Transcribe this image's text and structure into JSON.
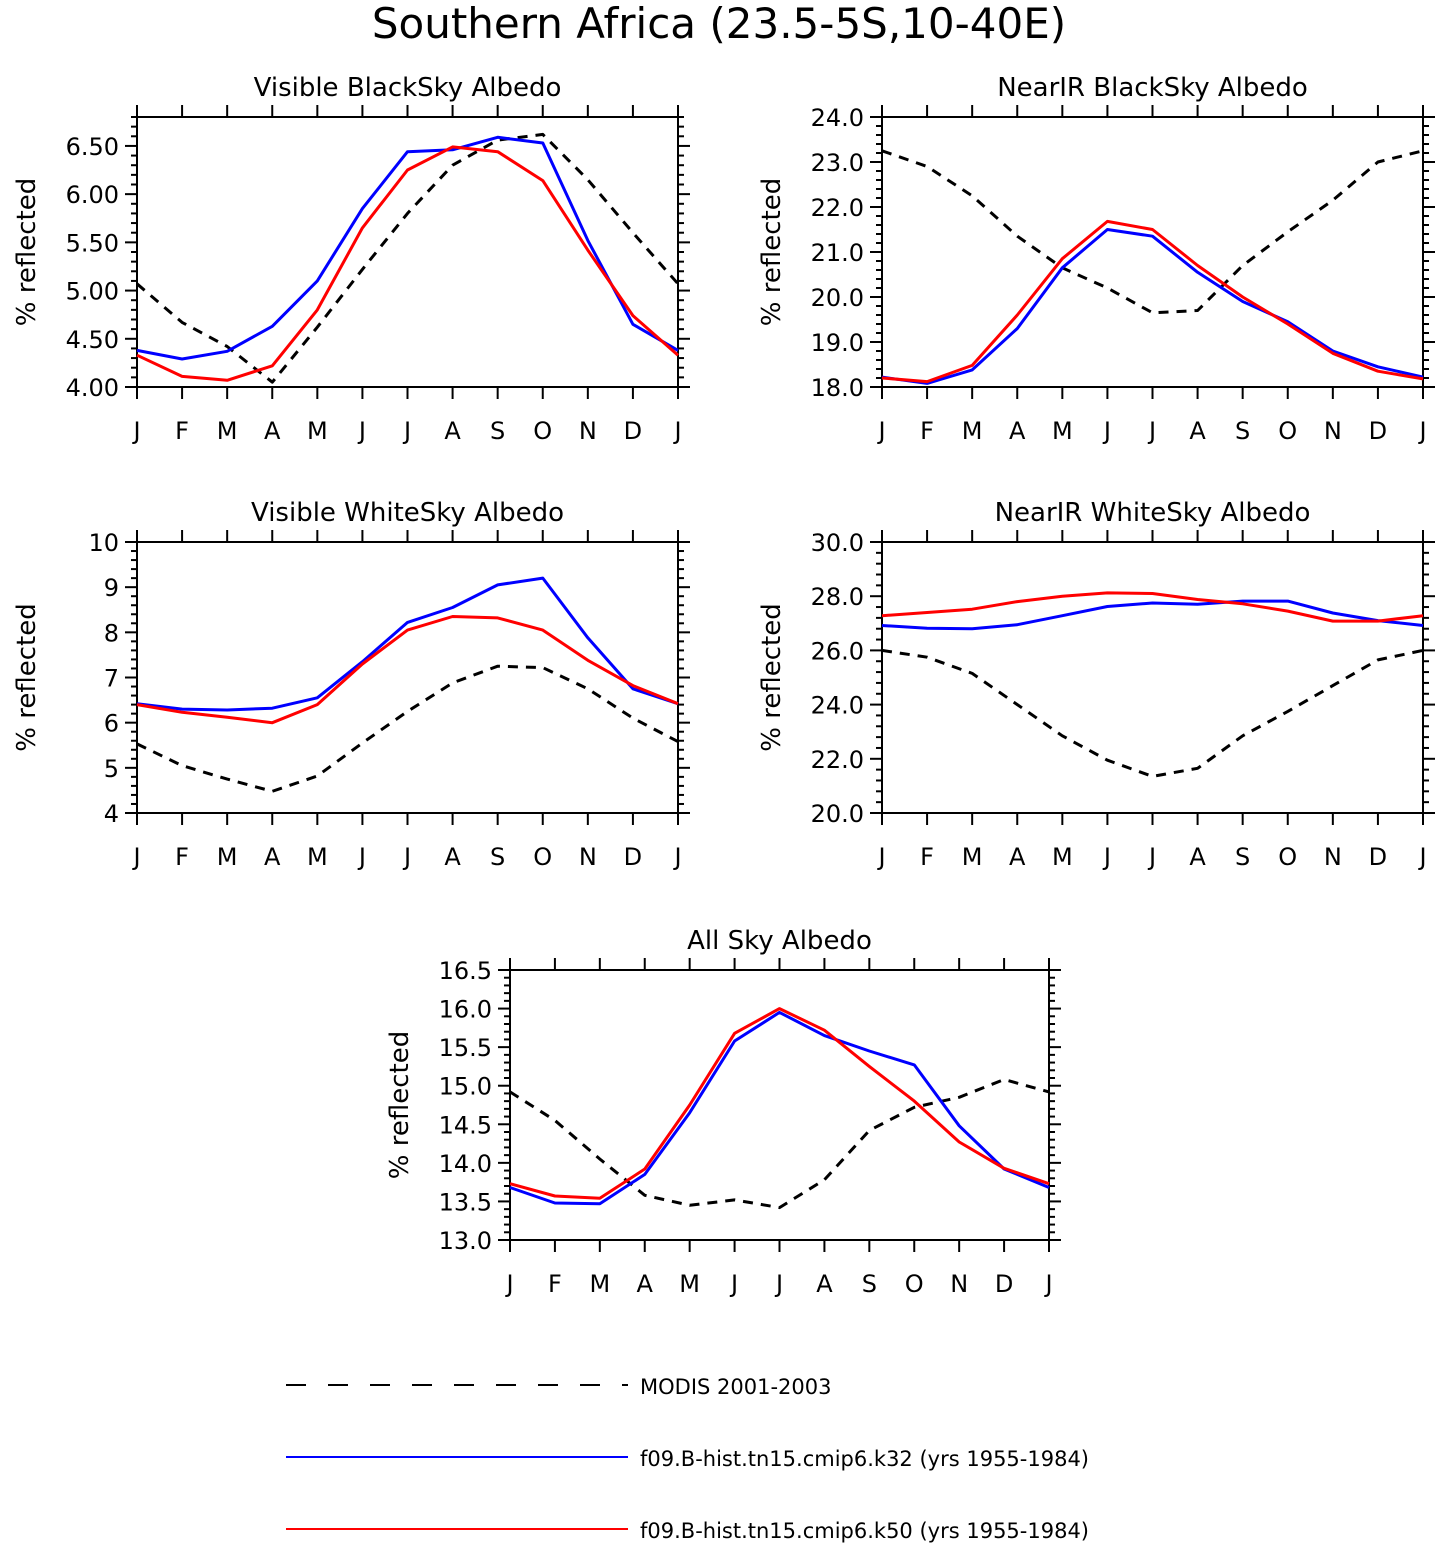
{
  "figure": {
    "title": "Southern Africa (23.5-5S,10-40E)"
  },
  "chart_data": [
    {
      "type": "line",
      "title": "Visible BlackSky Albedo",
      "ylabel": "% reflected",
      "ylim": [
        4.0,
        6.8
      ],
      "yticks": [
        4.0,
        4.5,
        5.0,
        5.5,
        6.0,
        6.5
      ],
      "ytick_labels": [
        "4.00",
        "4.50",
        "5.00",
        "5.50",
        "6.00",
        "6.50"
      ],
      "categories": [
        "J",
        "F",
        "M",
        "A",
        "M",
        "J",
        "J",
        "A",
        "S",
        "O",
        "N",
        "D",
        "J"
      ],
      "series": [
        {
          "name": "MODIS 2001-2003",
          "values": [
            5.07,
            4.67,
            4.42,
            4.05,
            4.62,
            5.22,
            5.8,
            6.3,
            6.56,
            6.62,
            6.15,
            5.6,
            5.07
          ]
        },
        {
          "name": "f09.B-hist.tn15.cmip6.k32 (yrs 1955-1984)",
          "values": [
            4.38,
            4.29,
            4.37,
            4.63,
            5.1,
            5.85,
            6.44,
            6.46,
            6.59,
            6.53,
            5.52,
            4.65,
            4.38
          ]
        },
        {
          "name": "f09.B-hist.tn15.cmip6.k50 (yrs 1955-1984)",
          "values": [
            4.33,
            4.11,
            4.07,
            4.22,
            4.8,
            5.65,
            6.25,
            6.49,
            6.44,
            6.14,
            5.42,
            4.74,
            4.33
          ]
        }
      ]
    },
    {
      "type": "line",
      "title": "NearIR BlackSky Albedo",
      "ylabel": "% reflected",
      "ylim": [
        18.0,
        24.0
      ],
      "yticks": [
        18,
        19,
        20,
        21,
        22,
        23,
        24
      ],
      "ytick_labels": [
        "18.0",
        "19.0",
        "20.0",
        "21.0",
        "22.0",
        "23.0",
        "24.0"
      ],
      "categories": [
        "J",
        "F",
        "M",
        "A",
        "M",
        "J",
        "J",
        "A",
        "S",
        "O",
        "N",
        "D",
        "J"
      ],
      "series": [
        {
          "name": "MODIS 2001-2003",
          "values": [
            23.25,
            22.9,
            22.25,
            21.35,
            20.65,
            20.2,
            19.65,
            19.7,
            20.7,
            21.45,
            22.15,
            23.0,
            23.25
          ]
        },
        {
          "name": "f09.B-hist.tn15.cmip6.k32 (yrs 1955-1984)",
          "values": [
            18.22,
            18.08,
            18.38,
            19.3,
            20.65,
            21.5,
            21.35,
            20.55,
            19.9,
            19.45,
            18.8,
            18.45,
            18.22
          ]
        },
        {
          "name": "f09.B-hist.tn15.cmip6.k50 (yrs 1955-1984)",
          "values": [
            18.2,
            18.12,
            18.48,
            19.6,
            20.85,
            21.68,
            21.5,
            20.7,
            20.0,
            19.4,
            18.75,
            18.35,
            18.18
          ]
        }
      ]
    },
    {
      "type": "line",
      "title": "Visible WhiteSky Albedo",
      "ylabel": "% reflected",
      "ylim": [
        4,
        10
      ],
      "yticks": [
        4,
        5,
        6,
        7,
        8,
        9,
        10
      ],
      "ytick_labels": [
        "4",
        "5",
        "6",
        "7",
        "8",
        "9",
        "10"
      ],
      "categories": [
        "J",
        "F",
        "M",
        "A",
        "M",
        "J",
        "J",
        "A",
        "S",
        "O",
        "N",
        "D",
        "J"
      ],
      "series": [
        {
          "name": "MODIS 2001-2003",
          "values": [
            5.53,
            5.05,
            4.75,
            4.48,
            4.82,
            5.55,
            6.25,
            6.88,
            7.25,
            7.22,
            6.75,
            6.1,
            5.58
          ]
        },
        {
          "name": "f09.B-hist.tn15.cmip6.k32 (yrs 1955-1984)",
          "values": [
            6.42,
            6.3,
            6.28,
            6.32,
            6.55,
            7.35,
            8.22,
            8.55,
            9.05,
            9.2,
            7.88,
            6.75,
            6.42
          ]
        },
        {
          "name": "f09.B-hist.tn15.cmip6.k50 (yrs 1955-1984)",
          "values": [
            6.4,
            6.23,
            6.12,
            6.0,
            6.4,
            7.3,
            8.05,
            8.35,
            8.32,
            8.05,
            7.38,
            6.82,
            6.42
          ]
        }
      ]
    },
    {
      "type": "line",
      "title": "NearIR WhiteSky Albedo",
      "ylabel": "% reflected",
      "ylim": [
        20.0,
        30.0
      ],
      "yticks": [
        20,
        22,
        24,
        26,
        28,
        30
      ],
      "ytick_labels": [
        "20.0",
        "22.0",
        "24.0",
        "26.0",
        "28.0",
        "30.0"
      ],
      "categories": [
        "J",
        "F",
        "M",
        "A",
        "M",
        "J",
        "J",
        "A",
        "S",
        "O",
        "N",
        "D",
        "J"
      ],
      "series": [
        {
          "name": "MODIS 2001-2003",
          "values": [
            26.0,
            25.75,
            25.15,
            24.0,
            22.85,
            21.95,
            21.35,
            21.65,
            22.85,
            23.75,
            24.7,
            25.65,
            26.0
          ]
        },
        {
          "name": "f09.B-hist.tn15.cmip6.k32 (yrs 1955-1984)",
          "values": [
            26.92,
            26.82,
            26.8,
            26.95,
            27.28,
            27.62,
            27.75,
            27.7,
            27.82,
            27.82,
            27.38,
            27.1,
            26.92
          ]
        },
        {
          "name": "f09.B-hist.tn15.cmip6.k50 (yrs 1955-1984)",
          "values": [
            27.28,
            27.4,
            27.52,
            27.8,
            28.0,
            28.12,
            28.1,
            27.88,
            27.72,
            27.45,
            27.08,
            27.08,
            27.28
          ]
        }
      ]
    },
    {
      "type": "line",
      "title": "All Sky Albedo",
      "ylabel": "% reflected",
      "ylim": [
        13.0,
        16.5
      ],
      "yticks": [
        13.0,
        13.5,
        14.0,
        14.5,
        15.0,
        15.5,
        16.0,
        16.5
      ],
      "ytick_labels": [
        "13.0",
        "13.5",
        "14.0",
        "14.5",
        "15.0",
        "15.5",
        "16.0",
        "16.5"
      ],
      "categories": [
        "J",
        "F",
        "M",
        "A",
        "M",
        "J",
        "J",
        "A",
        "S",
        "O",
        "N",
        "D",
        "J"
      ],
      "series": [
        {
          "name": "MODIS 2001-2003",
          "values": [
            14.92,
            14.55,
            14.05,
            13.58,
            13.45,
            13.52,
            13.42,
            13.78,
            14.42,
            14.72,
            14.85,
            15.08,
            14.92
          ]
        },
        {
          "name": "f09.B-hist.tn15.cmip6.k32 (yrs 1955-1984)",
          "values": [
            13.68,
            13.48,
            13.47,
            13.85,
            14.65,
            15.58,
            15.95,
            15.65,
            15.45,
            15.27,
            14.48,
            13.92,
            13.68
          ]
        },
        {
          "name": "f09.B-hist.tn15.cmip6.k50 (yrs 1955-1984)",
          "values": [
            13.73,
            13.57,
            13.54,
            13.92,
            14.75,
            15.68,
            16.0,
            15.72,
            15.25,
            14.8,
            14.27,
            13.93,
            13.73
          ]
        }
      ]
    }
  ],
  "legend": {
    "placement": "bottom",
    "entries": [
      {
        "label": "MODIS 2001-2003",
        "color": "#000000",
        "style": "dashed"
      },
      {
        "label": "f09.B-hist.tn15.cmip6.k32 (yrs 1955-1984)",
        "color": "#0000ff",
        "style": "solid"
      },
      {
        "label": "f09.B-hist.tn15.cmip6.k50 (yrs 1955-1984)",
        "color": "#ff0000",
        "style": "solid"
      }
    ]
  }
}
